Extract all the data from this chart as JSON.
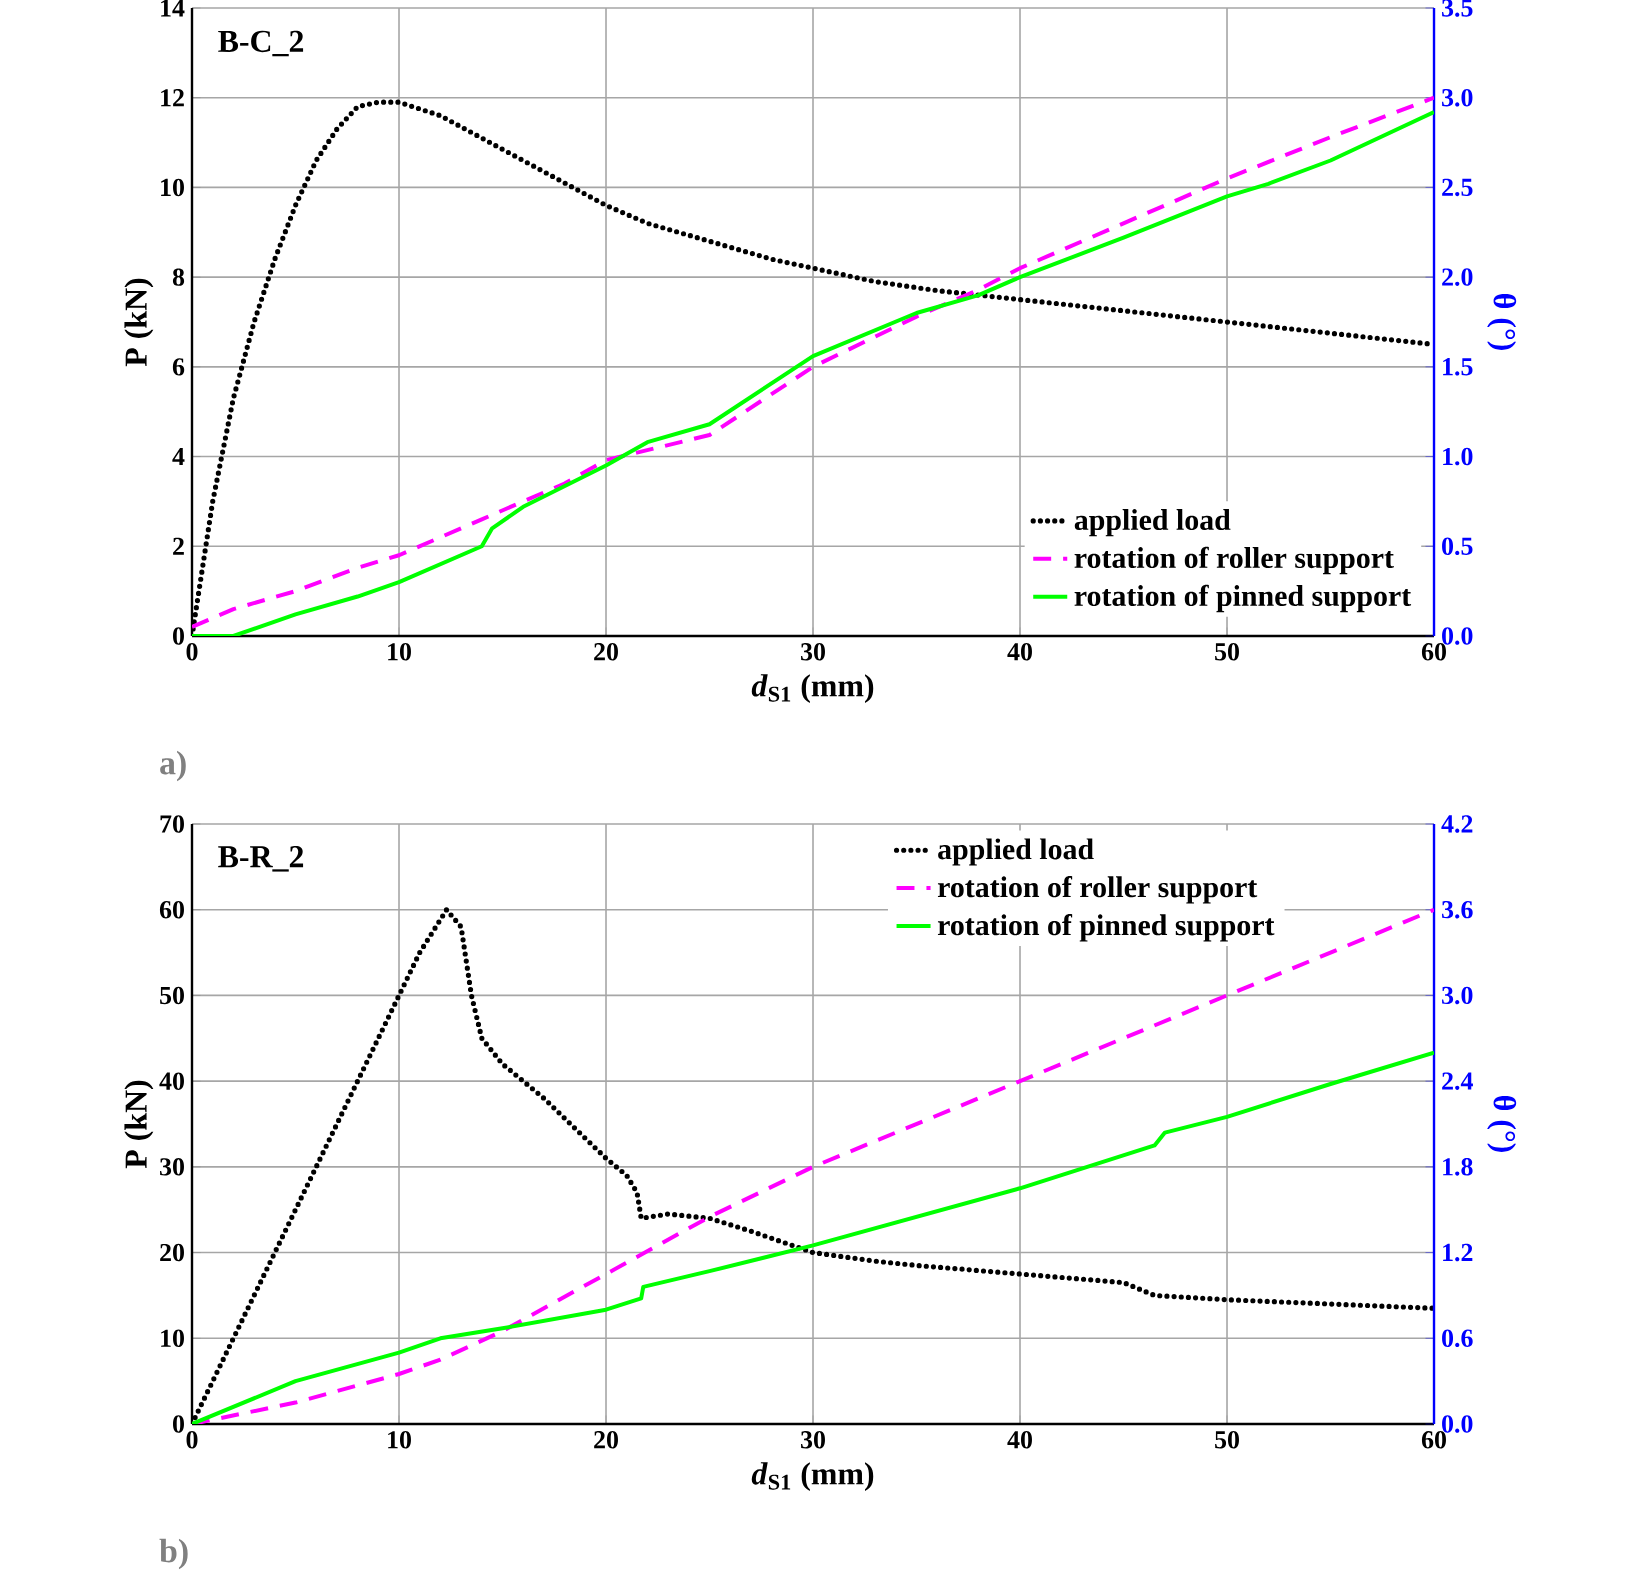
{
  "chart_data": [
    {
      "type": "line",
      "xlabel": "*d*$_{S1}$ (mm)",
      "ylabel": "P (kN)",
      "y2label": "θ (°)",
      "annotations": [
        "B-C_2",
        "a)"
      ],
      "xlim": [
        0,
        60
      ],
      "xticks": [
        0,
        10,
        20,
        30,
        40,
        50,
        60
      ],
      "ylim": [
        0,
        14
      ],
      "yticks": [
        0,
        2,
        4,
        6,
        8,
        10,
        12,
        14
      ],
      "y2lim": [
        0,
        3.5
      ],
      "y2ticks": [
        {
          "value": 0,
          "label": "0.0"
        },
        {
          "value": 0.5,
          "label": "0.5"
        },
        {
          "value": 1,
          "label": "1.0"
        },
        {
          "value": 1.5,
          "label": "1.5"
        },
        {
          "value": 2,
          "label": "2.0"
        },
        {
          "value": 2.5,
          "label": "2.5"
        },
        {
          "value": 3,
          "label": "3.0"
        },
        {
          "value": 3.5,
          "label": "3.5"
        }
      ],
      "grid": true,
      "legend": "bottom right",
      "series": [
        {
          "name": "applied load",
          "color": "#000000",
          "line_style": "dotted",
          "x": [
            0,
            0.5,
            1,
            2,
            3,
            4,
            5,
            6,
            7,
            8,
            9,
            10,
            12,
            14,
            16,
            18,
            20,
            22,
            25,
            28,
            30,
            33,
            36,
            40,
            44,
            48,
            52,
            56,
            60
          ],
          "values": [
            0,
            1.5,
            3,
            5.3,
            7,
            8.4,
            9.6,
            10.6,
            11.3,
            11.8,
            11.9,
            11.9,
            11.6,
            11.1,
            10.6,
            10.1,
            9.6,
            9.2,
            8.8,
            8.4,
            8.2,
            7.9,
            7.7,
            7.5,
            7.3,
            7.1,
            6.9,
            6.7,
            6.5
          ]
        },
        {
          "name": "rotation of roller support",
          "color": "#ff00ff",
          "line_style": "dashed",
          "axis": "y2",
          "x": [
            0,
            2,
            5,
            8,
            10,
            14,
            18,
            20,
            25,
            30,
            35,
            38,
            40,
            45,
            50,
            55,
            60
          ],
          "values": [
            0.05,
            0.15,
            0.25,
            0.38,
            0.45,
            0.65,
            0.85,
            0.98,
            1.12,
            1.5,
            1.78,
            1.93,
            2.05,
            2.3,
            2.55,
            2.78,
            3.0
          ]
        },
        {
          "name": "rotation of pinned support",
          "color": "#00ff00",
          "line_style": "solid",
          "axis": "y2",
          "x": [
            0,
            2,
            5,
            8,
            10,
            14,
            14.5,
            16,
            20,
            22,
            25,
            30,
            35,
            38,
            40,
            45,
            50,
            52,
            55,
            60
          ],
          "values": [
            0,
            0,
            0.12,
            0.22,
            0.3,
            0.5,
            0.6,
            0.72,
            0.95,
            1.08,
            1.18,
            1.56,
            1.8,
            1.9,
            2.0,
            2.22,
            2.45,
            2.52,
            2.65,
            2.92
          ]
        }
      ]
    },
    {
      "type": "line",
      "xlabel": "*d*$_{S1}$ (mm)",
      "ylabel": "P (kN)",
      "y2label": "θ (°)",
      "annotations": [
        "B-R_2",
        "b)"
      ],
      "xlim": [
        0,
        60
      ],
      "xticks": [
        0,
        10,
        20,
        30,
        40,
        50,
        60
      ],
      "ylim": [
        0,
        70
      ],
      "yticks": [
        0,
        10,
        20,
        30,
        40,
        50,
        60,
        70
      ],
      "y2lim": [
        0,
        4.2
      ],
      "y2ticks": [
        {
          "value": 0,
          "label": "0.0"
        },
        {
          "value": 0.6,
          "label": "0.6"
        },
        {
          "value": 1.2,
          "label": "1.2"
        },
        {
          "value": 1.8,
          "label": "1.8"
        },
        {
          "value": 2.4,
          "label": "2.4"
        },
        {
          "value": 3.0,
          "label": "3.0"
        },
        {
          "value": 3.6,
          "label": "3.6"
        },
        {
          "value": 4.2,
          "label": "4.2"
        }
      ],
      "grid": true,
      "legend": "top",
      "series": [
        {
          "name": "applied load",
          "color": "#000000",
          "line_style": "dotted",
          "x": [
            0,
            2,
            4,
            6,
            8,
            10,
            11,
            12.3,
            13,
            13.5,
            14,
            15,
            17,
            20,
            21,
            21.5,
            21.7,
            23,
            25,
            27,
            30,
            33,
            35,
            40,
            45,
            46.5,
            50,
            55,
            60
          ],
          "values": [
            0,
            10,
            20,
            30,
            40,
            50,
            55,
            60,
            58,
            50,
            45,
            42,
            38,
            31,
            29,
            27,
            24,
            24.5,
            24,
            22.5,
            20,
            19,
            18.5,
            17.5,
            16.5,
            15,
            14.5,
            14,
            13.5
          ]
        },
        {
          "name": "rotation of roller support",
          "color": "#ff00ff",
          "line_style": "dashed",
          "axis": "y2",
          "x": [
            0,
            5,
            10,
            12,
            15,
            20,
            25,
            30,
            40,
            50,
            60
          ],
          "values": [
            0,
            0.15,
            0.35,
            0.45,
            0.65,
            1.05,
            1.45,
            1.8,
            2.4,
            3.0,
            3.6
          ]
        },
        {
          "name": "rotation of pinned support",
          "color": "#00ff00",
          "line_style": "solid",
          "axis": "y2",
          "x": [
            0,
            5,
            10,
            12,
            15,
            20,
            21.7,
            21.8,
            25,
            30,
            35,
            40,
            46.5,
            47,
            50,
            55,
            60
          ],
          "values": [
            0,
            0.3,
            0.5,
            0.6,
            0.67,
            0.8,
            0.88,
            0.96,
            1.07,
            1.25,
            1.45,
            1.65,
            1.95,
            2.04,
            2.15,
            2.38,
            2.6
          ]
        }
      ]
    }
  ]
}
